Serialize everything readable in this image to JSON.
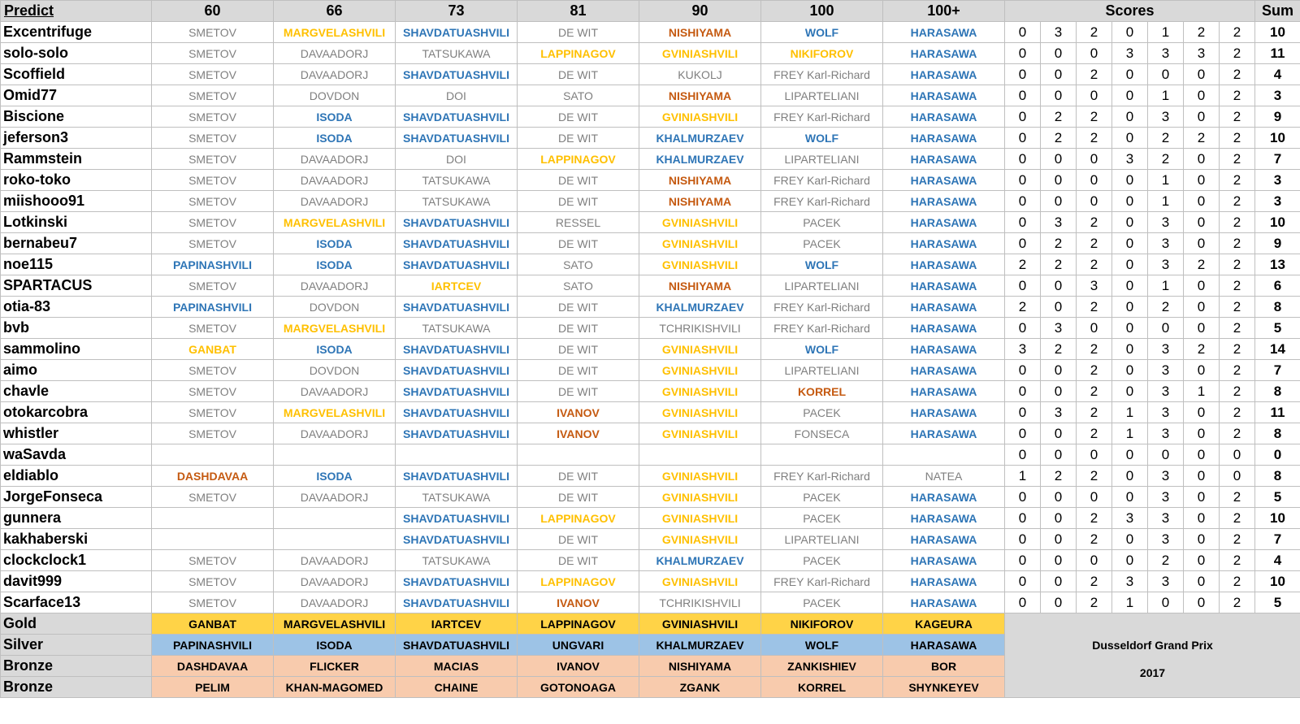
{
  "table": {
    "header": [
      "Predict",
      "60",
      "66",
      "73",
      "81",
      "90",
      "100",
      "100+",
      "Scores",
      "Sum"
    ],
    "rows": [
      {
        "name": "Excentrifuge",
        "picks": [
          "SMETOV",
          "MARGVELASHVILI",
          "SHAVDATUASHVILI",
          "DE WIT",
          "NISHIYAMA",
          "WOLF",
          "HARASAWA"
        ],
        "scores": [
          0,
          3,
          2,
          0,
          1,
          2,
          2
        ],
        "sum": 10
      },
      {
        "name": "solo-solo",
        "picks": [
          "SMETOV",
          "DAVAADORJ",
          "TATSUKAWA",
          "LAPPINAGOV",
          "GVINIASHVILI",
          "NIKIFOROV",
          "HARASAWA"
        ],
        "scores": [
          0,
          0,
          0,
          3,
          3,
          3,
          2
        ],
        "sum": 11
      },
      {
        "name": "Scoffield",
        "picks": [
          "SMETOV",
          "DAVAADORJ",
          "SHAVDATUASHVILI",
          "DE WIT",
          "KUKOLJ",
          "FREY Karl-Richard",
          "HARASAWA"
        ],
        "scores": [
          0,
          0,
          2,
          0,
          0,
          0,
          2
        ],
        "sum": 4
      },
      {
        "name": "Omid77",
        "picks": [
          "SMETOV",
          "DOVDON",
          "DOI",
          "SATO",
          "NISHIYAMA",
          "LIPARTELIANI",
          "HARASAWA"
        ],
        "scores": [
          0,
          0,
          0,
          0,
          1,
          0,
          2
        ],
        "sum": 3
      },
      {
        "name": "Biscione",
        "picks": [
          "SMETOV",
          "ISODA",
          "SHAVDATUASHVILI",
          "DE WIT",
          "GVINIASHVILI",
          "FREY Karl-Richard",
          "HARASAWA"
        ],
        "scores": [
          0,
          2,
          2,
          0,
          3,
          0,
          2
        ],
        "sum": 9
      },
      {
        "name": "jeferson3",
        "picks": [
          "SMETOV",
          "ISODA",
          "SHAVDATUASHVILI",
          "DE WIT",
          "KHALMURZAEV",
          "WOLF",
          "HARASAWA"
        ],
        "scores": [
          0,
          2,
          2,
          0,
          2,
          2,
          2
        ],
        "sum": 10
      },
      {
        "name": "Rammstein",
        "picks": [
          "SMETOV",
          "DAVAADORJ",
          "DOI",
          "LAPPINAGOV",
          "KHALMURZAEV",
          "LIPARTELIANI",
          "HARASAWA"
        ],
        "scores": [
          0,
          0,
          0,
          3,
          2,
          0,
          2
        ],
        "sum": 7
      },
      {
        "name": "roko-toko",
        "picks": [
          "SMETOV",
          "DAVAADORJ",
          "TATSUKAWA",
          "DE WIT",
          "NISHIYAMA",
          "FREY Karl-Richard",
          "HARASAWA"
        ],
        "scores": [
          0,
          0,
          0,
          0,
          1,
          0,
          2
        ],
        "sum": 3
      },
      {
        "name": "miishooo91",
        "picks": [
          "SMETOV",
          "DAVAADORJ",
          "TATSUKAWA",
          "DE WIT",
          "NISHIYAMA",
          "FREY Karl-Richard",
          "HARASAWA"
        ],
        "scores": [
          0,
          0,
          0,
          0,
          1,
          0,
          2
        ],
        "sum": 3
      },
      {
        "name": "Lotkinski",
        "picks": [
          "SMETOV",
          "MARGVELASHVILI",
          "SHAVDATUASHVILI",
          "RESSEL",
          "GVINIASHVILI",
          "PACEK",
          "HARASAWA"
        ],
        "scores": [
          0,
          3,
          2,
          0,
          3,
          0,
          2
        ],
        "sum": 10
      },
      {
        "name": "bernabeu7",
        "picks": [
          "SMETOV",
          "ISODA",
          "SHAVDATUASHVILI",
          "DE WIT",
          "GVINIASHVILI",
          "PACEK",
          "HARASAWA"
        ],
        "scores": [
          0,
          2,
          2,
          0,
          3,
          0,
          2
        ],
        "sum": 9
      },
      {
        "name": "noe115",
        "picks": [
          "PAPINASHVILI",
          "ISODA",
          "SHAVDATUASHVILI",
          "SATO",
          "GVINIASHVILI",
          "WOLF",
          "HARASAWA"
        ],
        "scores": [
          2,
          2,
          2,
          0,
          3,
          2,
          2
        ],
        "sum": 13
      },
      {
        "name": "SPARTACUS",
        "picks": [
          "SMETOV",
          "DAVAADORJ",
          "IARTCEV",
          "SATO",
          "NISHIYAMA",
          "LIPARTELIANI",
          "HARASAWA"
        ],
        "scores": [
          0,
          0,
          3,
          0,
          1,
          0,
          2
        ],
        "sum": 6
      },
      {
        "name": "otia-83",
        "picks": [
          "PAPINASHVILI",
          "DOVDON",
          "SHAVDATUASHVILI",
          "DE WIT",
          "KHALMURZAEV",
          "FREY Karl-Richard",
          "HARASAWA"
        ],
        "scores": [
          2,
          0,
          2,
          0,
          2,
          0,
          2
        ],
        "sum": 8
      },
      {
        "name": "bvb",
        "picks": [
          "SMETOV",
          "MARGVELASHVILI",
          "TATSUKAWA",
          "DE WIT",
          "TCHRIKISHVILI",
          "FREY Karl-Richard",
          "HARASAWA"
        ],
        "scores": [
          0,
          3,
          0,
          0,
          0,
          0,
          2
        ],
        "sum": 5
      },
      {
        "name": "sammolino",
        "picks": [
          "GANBAT",
          "ISODA",
          "SHAVDATUASHVILI",
          "DE WIT",
          "GVINIASHVILI",
          "WOLF",
          "HARASAWA"
        ],
        "scores": [
          3,
          2,
          2,
          0,
          3,
          2,
          2
        ],
        "sum": 14
      },
      {
        "name": "aimo",
        "picks": [
          "SMETOV",
          "DOVDON",
          "SHAVDATUASHVILI",
          "DE WIT",
          "GVINIASHVILI",
          "LIPARTELIANI",
          "HARASAWA"
        ],
        "scores": [
          0,
          0,
          2,
          0,
          3,
          0,
          2
        ],
        "sum": 7
      },
      {
        "name": "chavle",
        "picks": [
          "SMETOV",
          "DAVAADORJ",
          "SHAVDATUASHVILI",
          "DE WIT",
          "GVINIASHVILI",
          "KORREL",
          "HARASAWA"
        ],
        "scores": [
          0,
          0,
          2,
          0,
          3,
          1,
          2
        ],
        "sum": 8
      },
      {
        "name": "otokarcobra",
        "picks": [
          "SMETOV",
          "MARGVELASHVILI",
          "SHAVDATUASHVILI",
          "IVANOV",
          "GVINIASHVILI",
          "PACEK",
          "HARASAWA"
        ],
        "scores": [
          0,
          3,
          2,
          1,
          3,
          0,
          2
        ],
        "sum": 11
      },
      {
        "name": "whistler",
        "picks": [
          "SMETOV",
          "DAVAADORJ",
          "SHAVDATUASHVILI",
          "IVANOV",
          "GVINIASHVILI",
          "FONSECA",
          "HARASAWA"
        ],
        "scores": [
          0,
          0,
          2,
          1,
          3,
          0,
          2
        ],
        "sum": 8
      },
      {
        "name": "waSavda",
        "picks": [
          null,
          null,
          null,
          null,
          null,
          null,
          null
        ],
        "scores": [
          0,
          0,
          0,
          0,
          0,
          0,
          0
        ],
        "sum": 0
      },
      {
        "name": "eldiablo",
        "picks": [
          "DASHDAVAA",
          "ISODA",
          "SHAVDATUASHVILI",
          "DE WIT",
          "GVINIASHVILI",
          "FREY Karl-Richard",
          "NATEA"
        ],
        "scores": [
          1,
          2,
          2,
          0,
          3,
          0,
          0
        ],
        "sum": 8
      },
      {
        "name": "JorgeFonseca",
        "picks": [
          "SMETOV",
          "DAVAADORJ",
          "TATSUKAWA",
          "DE WIT",
          "GVINIASHVILI",
          "PACEK",
          "HARASAWA"
        ],
        "scores": [
          0,
          0,
          0,
          0,
          3,
          0,
          2
        ],
        "sum": 5
      },
      {
        "name": "gunnera",
        "picks": [
          null,
          null,
          "SHAVDATUASHVILI",
          "LAPPINAGOV",
          "GVINIASHVILI",
          "PACEK",
          "HARASAWA"
        ],
        "scores": [
          0,
          0,
          2,
          3,
          3,
          0,
          2
        ],
        "sum": 10
      },
      {
        "name": "kakhaberski",
        "picks": [
          null,
          null,
          "SHAVDATUASHVILI",
          "DE WIT",
          "GVINIASHVILI",
          "LIPARTELIANI",
          "HARASAWA"
        ],
        "scores": [
          0,
          0,
          2,
          0,
          3,
          0,
          2
        ],
        "sum": 7
      },
      {
        "name": "clockclock1",
        "picks": [
          "SMETOV",
          "DAVAADORJ",
          "TATSUKAWA",
          "DE WIT",
          "KHALMURZAEV",
          "PACEK",
          "HARASAWA"
        ],
        "scores": [
          0,
          0,
          0,
          0,
          2,
          0,
          2
        ],
        "sum": 4
      },
      {
        "name": "davit999",
        "picks": [
          "SMETOV",
          "DAVAADORJ",
          "SHAVDATUASHVILI",
          "LAPPINAGOV",
          "GVINIASHVILI",
          "FREY Karl-Richard",
          "HARASAWA"
        ],
        "scores": [
          0,
          0,
          2,
          3,
          3,
          0,
          2
        ],
        "sum": 10
      },
      {
        "name": "Scarface13",
        "picks": [
          "SMETOV",
          "DAVAADORJ",
          "SHAVDATUASHVILI",
          "IVANOV",
          "TCHRIKISHVILI",
          "PACEK",
          "HARASAWA"
        ],
        "scores": [
          0,
          0,
          2,
          1,
          0,
          0,
          2
        ],
        "sum": 5
      }
    ],
    "medals": [
      {
        "label": "Gold",
        "names": [
          "GANBAT",
          "MARGVELASHVILI",
          "IARTCEV",
          "LAPPINAGOV",
          "GVINIASHVILI",
          "NIKIFOROV",
          "KAGEURA"
        ]
      },
      {
        "label": "Silver",
        "names": [
          "PAPINASHVILI",
          "ISODA",
          "SHAVDATUASHVILI",
          "UNGVARI",
          "KHALMURZAEV",
          "WOLF",
          "HARASAWA"
        ]
      },
      {
        "label": "Bronze",
        "names": [
          "DASHDAVAA",
          "FLICKER",
          "MACIAS",
          "IVANOV",
          "NISHIYAMA",
          "ZANKISHIEV",
          "BOR"
        ]
      },
      {
        "label": "Bronze",
        "names": [
          "PELIM",
          "KHAN-MAGOMED",
          "CHAINE",
          "GOTONOAGA",
          "ZGANK",
          "KORREL",
          "SHYNKEYEV"
        ]
      }
    ],
    "caption": [
      "Dusseldorf Grand Prix",
      "2017"
    ]
  }
}
